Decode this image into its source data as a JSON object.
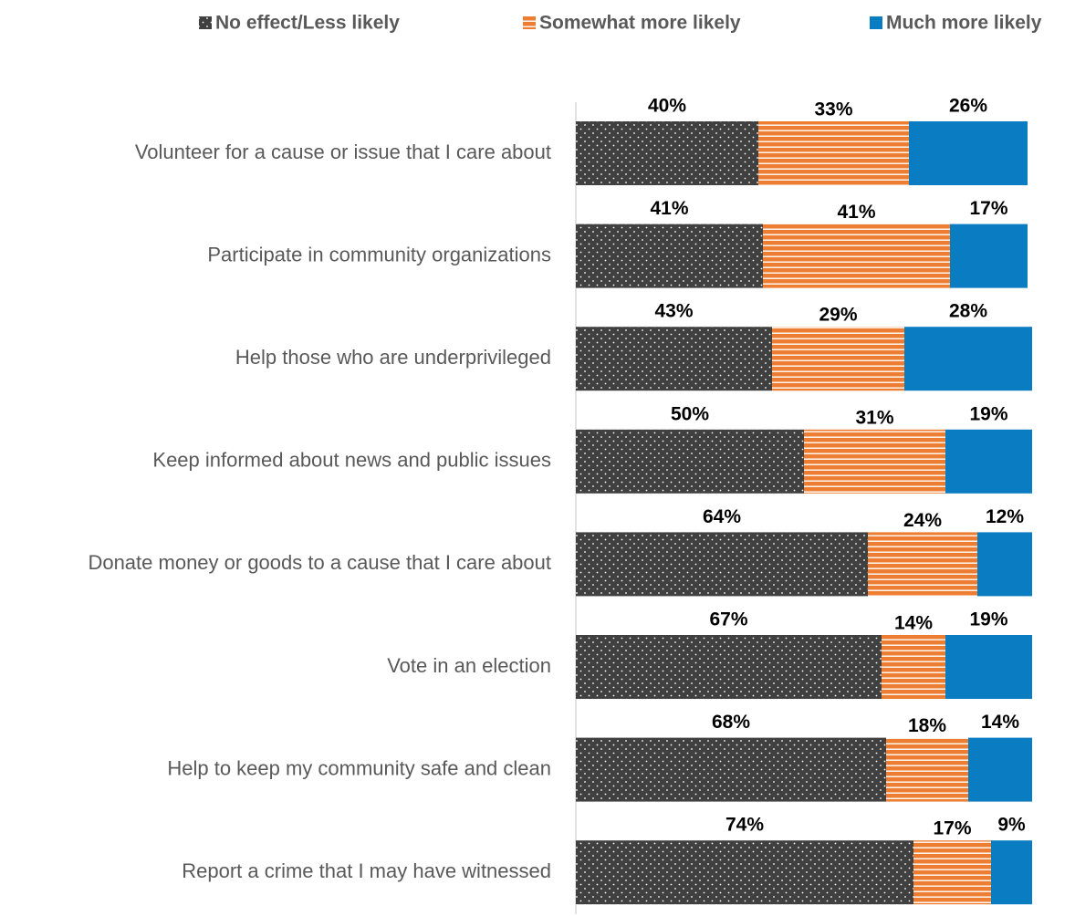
{
  "chart_data": {
    "type": "stacked_bar_horizontal",
    "categories": [
      "Volunteer for a cause or issue that I care about",
      "Participate in community organizations",
      "Help those who are underprivileged",
      "Keep informed about news and public issues",
      "Donate money or goods to a cause that I care about",
      "Vote in an election",
      "Help to keep my community safe and clean",
      "Report a crime that I may have witnessed"
    ],
    "series": [
      {
        "name": "No effect/Less likely",
        "color": "#404040",
        "values": [
          40,
          41,
          43,
          50,
          64,
          67,
          68,
          74
        ],
        "value_labels": [
          "40%",
          "41%",
          "43%",
          "50%",
          "64%",
          "67%",
          "68%",
          "74%"
        ]
      },
      {
        "name": "Somewhat more likely",
        "color": "#ed7d31",
        "values": [
          33,
          41,
          29,
          31,
          24,
          14,
          18,
          17
        ],
        "value_labels": [
          "33%",
          "41%",
          "29%",
          "31%",
          "24%",
          "14%",
          "18%",
          "17%"
        ]
      },
      {
        "name": "Much more likely",
        "color": "#0a7cc1",
        "values": [
          26,
          17,
          28,
          19,
          12,
          19,
          14,
          9
        ],
        "value_labels": [
          "26%",
          "17%",
          "28%",
          "19%",
          "12%",
          "19%",
          "14%",
          "9%"
        ]
      }
    ],
    "legend": "top"
  }
}
